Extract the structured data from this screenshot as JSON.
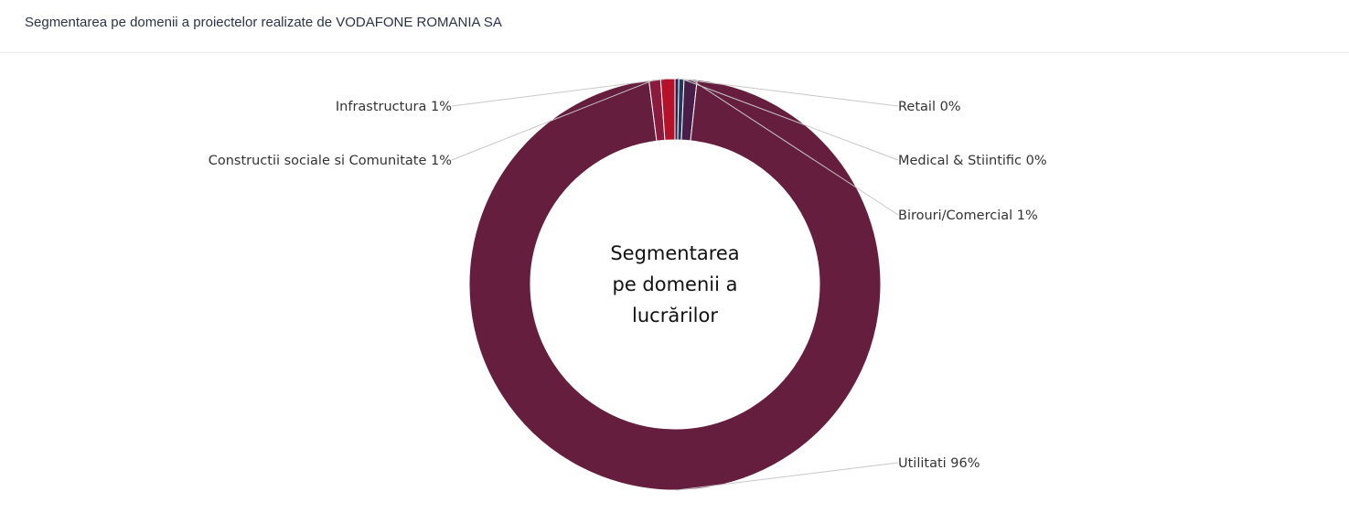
{
  "header": {
    "title": "Segmentarea pe domenii a proiectelor realizate de VODAFONE ROMANIA SA"
  },
  "chart_data": {
    "type": "pie",
    "variant": "donut",
    "center_text": [
      "Segmentarea",
      "pe domenii a",
      "lucrărilor"
    ],
    "slices": [
      {
        "name": "Retail",
        "label": "Retail 0%",
        "value": 0.3,
        "color": "#2a2150"
      },
      {
        "name": "Medical & Stiintific",
        "label": "Medical & Stiintific 0%",
        "value": 0.4,
        "color": "#1f3a5c"
      },
      {
        "name": "Birouri/Comercial",
        "label": "Birouri/Comercial 1%",
        "value": 1.0,
        "color": "#4a1d49"
      },
      {
        "name": "Utilitati",
        "label": "Utilitati 96%",
        "value": 95.3,
        "color": "#661e3e"
      },
      {
        "name": "Constructii sociale si Comunitate",
        "label": "Constructii sociale si Comunitate 1%",
        "value": 0.9,
        "color": "#8a1a3e"
      },
      {
        "name": "Infrastructura",
        "label": "Infrastructura 1%",
        "value": 1.1,
        "color": "#b5122a"
      }
    ],
    "legend": "none"
  }
}
